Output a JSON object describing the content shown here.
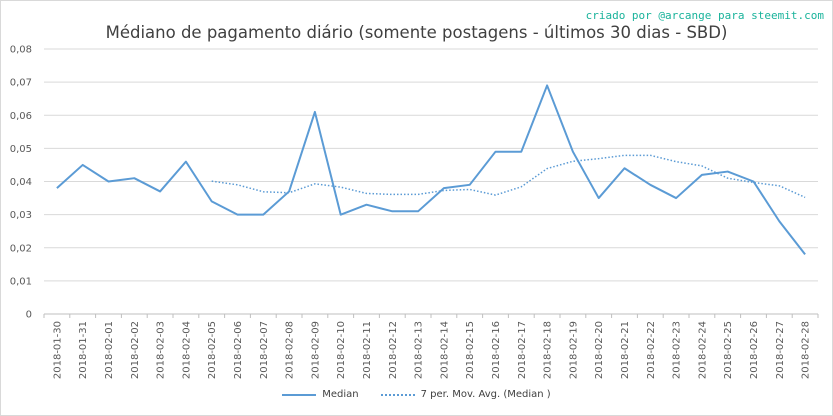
{
  "chart_data": {
    "type": "line",
    "title": "Médiano de pagamento diário (somente postagens - últimos 30 dias - SBD)",
    "credit": "criado por @arcange para steemit.com",
    "categories": [
      "2018-01-30",
      "2018-01-31",
      "2018-02-01",
      "2018-02-02",
      "2018-02-03",
      "2018-02-04",
      "2018-02-05",
      "2018-02-06",
      "2018-02-07",
      "2018-02-08",
      "2018-02-09",
      "2018-02-10",
      "2018-02-11",
      "2018-02-12",
      "2018-02-13",
      "2018-02-14",
      "2018-02-15",
      "2018-02-16",
      "2018-02-17",
      "2018-02-18",
      "2018-02-19",
      "2018-02-20",
      "2018-02-21",
      "2018-02-22",
      "2018-02-23",
      "2018-02-24",
      "2018-02-25",
      "2018-02-26",
      "2018-02-27",
      "2018-02-28"
    ],
    "series": [
      {
        "name": "Median",
        "style": "solid",
        "values": [
          0.038,
          0.045,
          0.04,
          0.041,
          0.037,
          0.046,
          0.034,
          0.03,
          0.03,
          0.037,
          0.061,
          0.03,
          0.033,
          0.031,
          0.031,
          0.038,
          0.039,
          0.049,
          0.049,
          0.069,
          0.049,
          0.035,
          0.044,
          0.039,
          0.035,
          0.042,
          0.043,
          0.04,
          0.028,
          0.018
        ]
      },
      {
        "name": "7 per. Mov. Avg. (Median )",
        "style": "dotted",
        "values": [
          null,
          null,
          null,
          null,
          null,
          null,
          0.0401,
          0.039,
          0.0369,
          0.0366,
          0.0393,
          0.0383,
          0.0364,
          0.0361,
          0.0361,
          0.0373,
          0.0376,
          0.0359,
          0.0384,
          0.0439,
          0.0461,
          0.0469,
          0.0479,
          0.0479,
          0.046,
          0.0447,
          0.041,
          0.0397,
          0.0387,
          0.0352
        ]
      }
    ],
    "y_ticks": [
      "0",
      "0,01",
      "0,02",
      "0,03",
      "0,04",
      "0,05",
      "0,06",
      "0,07",
      "0,08"
    ],
    "ylim": [
      0,
      0.08
    ],
    "grid": "horizontal",
    "legend_position": "bottom",
    "color": "#5b9bd5"
  }
}
